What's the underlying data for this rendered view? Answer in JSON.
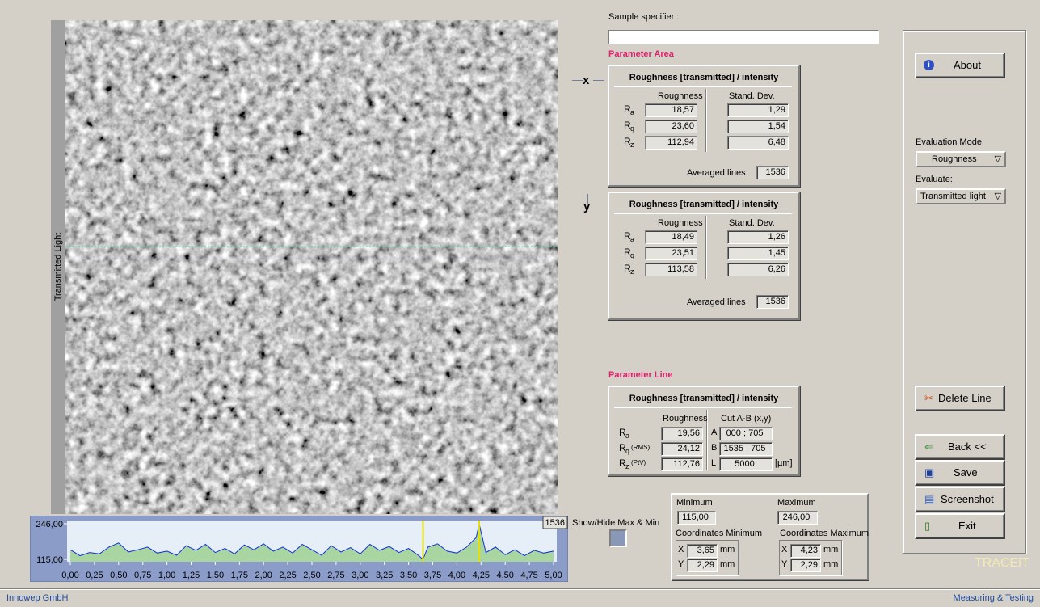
{
  "image": {
    "label": "Transmitted Light"
  },
  "sample_specifier": {
    "label": "Sample specifier :"
  },
  "parameter_area": {
    "heading": "Parameter Area",
    "panels": [
      {
        "axis": "x",
        "title": "Roughness [transmitted] / intensity",
        "columns": [
          "Roughness",
          "Stand. Dev."
        ],
        "rows": [
          {
            "symbol": "R",
            "sub": "a",
            "roughness": "18,57",
            "std_dev": "1,29"
          },
          {
            "symbol": "R",
            "sub": "q",
            "roughness": "23,60",
            "std_dev": "1,54"
          },
          {
            "symbol": "R",
            "sub": "z",
            "roughness": "112,94",
            "std_dev": "6,48"
          }
        ],
        "averaged_label": "Averaged lines",
        "averaged_value": "1536"
      },
      {
        "axis": "y",
        "title": "Roughness [transmitted] / intensity",
        "columns": [
          "Roughness",
          "Stand. Dev."
        ],
        "rows": [
          {
            "symbol": "R",
            "sub": "a",
            "roughness": "18,49",
            "std_dev": "1,26"
          },
          {
            "symbol": "R",
            "sub": "q",
            "roughness": "23,51",
            "std_dev": "1,45"
          },
          {
            "symbol": "R",
            "sub": "z",
            "roughness": "113,58",
            "std_dev": "6,26"
          }
        ],
        "averaged_label": "Averaged lines",
        "averaged_value": "1536"
      }
    ]
  },
  "parameter_line": {
    "heading": "Parameter Line",
    "title": "Roughness [transmitted] / intensity",
    "columns": [
      "Roughness",
      "Cut A-B  (x,y)"
    ],
    "rows": [
      {
        "symbol": "R",
        "sub": "a",
        "roughness": "19,56",
        "cut_key": "A",
        "cut": "000 ; 705"
      },
      {
        "symbol": "R",
        "sub": "q",
        "suffix": "(RMS)",
        "roughness": "24,12",
        "cut_key": "B",
        "cut": "1535 ; 705"
      },
      {
        "symbol": "R",
        "sub": "z",
        "suffix": "(PtV)",
        "roughness": "112,76",
        "cut_key": "L",
        "cut": "5000",
        "unit": "[µm]"
      }
    ]
  },
  "extrema": {
    "min_label": "Minimum",
    "min_value": "115,00",
    "max_label": "Maximum",
    "max_value": "246,00",
    "coord_min_label": "Coordinates Minimum",
    "coord_max_label": "Coordinates Maximum",
    "coord_min": [
      {
        "axis": "X",
        "value": "3,65",
        "unit": "mm"
      },
      {
        "axis": "Y",
        "value": "2,29",
        "unit": "mm"
      }
    ],
    "coord_max": [
      {
        "axis": "X",
        "value": "4,23",
        "unit": "mm"
      },
      {
        "axis": "Y",
        "value": "2,29",
        "unit": "mm"
      }
    ]
  },
  "show_hide": "Show/Hide Max & Min",
  "sidebar": {
    "about": "About",
    "evaluation_mode_label": "Evaluation Mode",
    "evaluation_mode": "Roughness",
    "evaluate_label": "Evaluate:",
    "evaluate": "Transmitted light",
    "delete_line": "Delete Line",
    "back": "Back <<",
    "save": "Save",
    "screenshot": "Screenshot",
    "exit": "Exit",
    "brand": "TRACEiT"
  },
  "footer": {
    "left": "Innowep GmbH",
    "right": "Measuring & Testing"
  },
  "chart_data": {
    "type": "line",
    "count_label": "1536",
    "x": [
      0,
      0.1,
      0.2,
      0.3,
      0.4,
      0.5,
      0.6,
      0.7,
      0.8,
      0.9,
      1.0,
      1.1,
      1.2,
      1.3,
      1.4,
      1.5,
      1.6,
      1.7,
      1.8,
      1.9,
      2.0,
      2.1,
      2.2,
      2.3,
      2.4,
      2.5,
      2.6,
      2.7,
      2.8,
      2.9,
      3.0,
      3.1,
      3.2,
      3.3,
      3.4,
      3.5,
      3.6,
      3.65,
      3.7,
      3.8,
      3.9,
      4.0,
      4.1,
      4.2,
      4.23,
      4.3,
      4.4,
      4.5,
      4.6,
      4.7,
      4.8,
      4.9,
      5.0
    ],
    "series": [
      {
        "color": "#1030e0",
        "values": [
          150,
          128,
          140,
          135,
          160,
          175,
          142,
          150,
          160,
          138,
          145,
          130,
          165,
          148,
          170,
          140,
          155,
          135,
          168,
          150,
          172,
          145,
          160,
          138,
          170,
          150,
          130,
          165,
          142,
          158,
          135,
          170,
          148,
          162,
          140,
          155,
          130,
          115,
          160,
          172,
          145,
          138,
          160,
          195,
          246,
          140,
          160,
          132,
          150,
          128,
          148,
          138,
          145
        ]
      }
    ],
    "area_color": "#a9d6a0",
    "cursors": [
      3.65,
      4.23
    ],
    "cursor_color": "#e8e000",
    "xlim": [
      0,
      5
    ],
    "ylim": [
      115,
      246
    ],
    "xticks": [
      {
        "value": 0,
        "label": "0,00"
      },
      {
        "value": 0.25,
        "label": "0,25"
      },
      {
        "value": 0.5,
        "label": "0,50"
      },
      {
        "value": 0.75,
        "label": "0,75"
      },
      {
        "value": 1,
        "label": "1,00"
      },
      {
        "value": 1.25,
        "label": "1,25"
      },
      {
        "value": 1.5,
        "label": "1,50"
      },
      {
        "value": 1.75,
        "label": "1,75"
      },
      {
        "value": 2,
        "label": "2,00"
      },
      {
        "value": 2.25,
        "label": "2,25"
      },
      {
        "value": 2.5,
        "label": "2,50"
      },
      {
        "value": 2.75,
        "label": "2,75"
      },
      {
        "value": 3,
        "label": "3,00"
      },
      {
        "value": 3.25,
        "label": "3,25"
      },
      {
        "value": 3.5,
        "label": "3,50"
      },
      {
        "value": 3.75,
        "label": "3,75"
      },
      {
        "value": 4,
        "label": "4,00"
      },
      {
        "value": 4.25,
        "label": "4,25"
      },
      {
        "value": 4.5,
        "label": "4,50"
      },
      {
        "value": 4.75,
        "label": "4,75"
      },
      {
        "value": 5,
        "label": "5,00"
      }
    ],
    "yticks": [
      {
        "value": 246,
        "label": "246,00"
      },
      {
        "value": 115,
        "label": "115,00"
      }
    ]
  }
}
